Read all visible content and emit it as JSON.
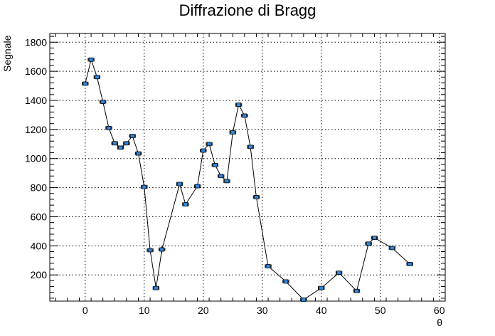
{
  "chart_data": {
    "type": "scatter",
    "title": "Diffrazione di Bragg",
    "xlabel": "θ",
    "ylabel": "Segnale",
    "xlim": [
      -6,
      61
    ],
    "ylim": [
      20,
      1860
    ],
    "xticks_major": [
      0,
      10,
      20,
      30,
      40,
      50,
      60
    ],
    "yticks_major": [
      200,
      400,
      600,
      800,
      1000,
      1200,
      1400,
      1600,
      1800
    ],
    "grid": true,
    "legend": "none",
    "marker_color": "#2e87e0",
    "line_color": "#000000",
    "series": [
      {
        "x": [
          0,
          1,
          2,
          3,
          4,
          5,
          6,
          7,
          8,
          9,
          10,
          11,
          12,
          13,
          16,
          17,
          19,
          20,
          21,
          22,
          23,
          24,
          25,
          26,
          27,
          28,
          29,
          31,
          34,
          37,
          40,
          43,
          46,
          48,
          49,
          52,
          55
        ],
        "y": [
          1515,
          1680,
          1560,
          1390,
          1210,
          1105,
          1075,
          1105,
          1155,
          1035,
          805,
          370,
          110,
          375,
          825,
          685,
          810,
          1055,
          1100,
          955,
          880,
          845,
          1180,
          1370,
          1295,
          1080,
          735,
          260,
          155,
          30,
          110,
          215,
          90,
          415,
          455,
          385,
          275
        ],
        "yerr": [
          10,
          10,
          10,
          12,
          8,
          10,
          8,
          8,
          8,
          8,
          10,
          8,
          8,
          25,
          10,
          8,
          8,
          10,
          10,
          8,
          8,
          8,
          8,
          10,
          8,
          8,
          8,
          8,
          8,
          8,
          8,
          8,
          8,
          8,
          8,
          8,
          8
        ],
        "xerr": 0.5
      }
    ]
  }
}
